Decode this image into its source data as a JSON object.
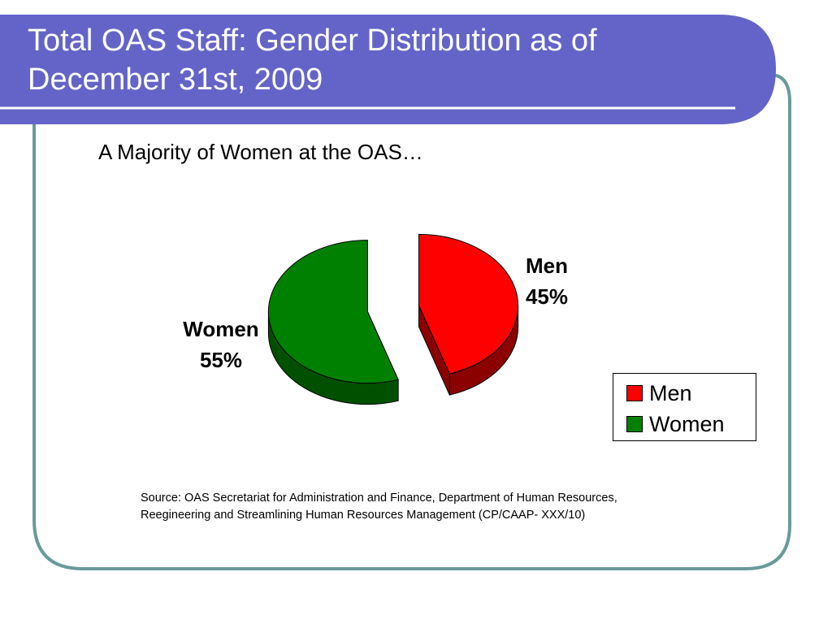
{
  "slide": {
    "title_line1": "Total OAS Staff: Gender Distribution as of",
    "title_line2": "December 31st, 2009",
    "subtitle": "A Majority of Women at the OAS…",
    "source_line1": "Source: OAS Secretariat for Administration and Finance, Department of Human Resources,",
    "source_line2": "Reegineering and Streamlining Human Resources Management (CP/CAAP- XXX/10)",
    "colors": {
      "title_band": "#6464c8",
      "frame_border": "#6a9a9a"
    }
  },
  "chart_data": {
    "type": "pie",
    "exploded": true,
    "three_d": true,
    "slices": [
      {
        "label": "Men",
        "value": 45,
        "value_label": "45%",
        "color": "#ff0000",
        "side_color": "#8b0000"
      },
      {
        "label": "Women",
        "value": 55,
        "value_label": "55%",
        "color": "#008000",
        "side_color": "#005000"
      }
    ],
    "legend": {
      "position": "right",
      "entries": [
        "Men",
        "Women"
      ]
    }
  }
}
